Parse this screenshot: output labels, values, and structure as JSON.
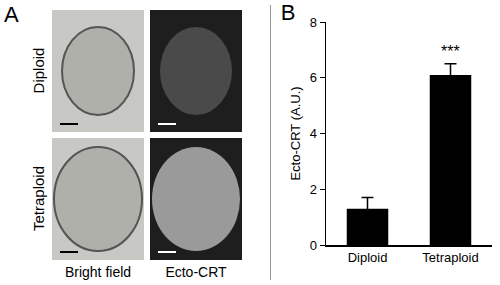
{
  "panel_a": {
    "label": "A",
    "rows": [
      "Diploid",
      "Tetraploid"
    ],
    "columns": [
      "Bright field",
      "Ecto-CRT"
    ]
  },
  "chart_data": {
    "type": "bar",
    "title": "B",
    "categories": [
      "Diploid",
      "Tetraploid"
    ],
    "values": [
      1.3,
      6.1
    ],
    "error": [
      0.4,
      0.4
    ],
    "color": "#000000",
    "y_label": "Ecto-CRT (A.U.)",
    "ylim": [
      0,
      8
    ],
    "yticks": [
      0,
      2,
      4,
      6,
      8
    ],
    "grid": false,
    "annotations": [
      {
        "text": "***",
        "category": "Tetraploid"
      }
    ]
  }
}
